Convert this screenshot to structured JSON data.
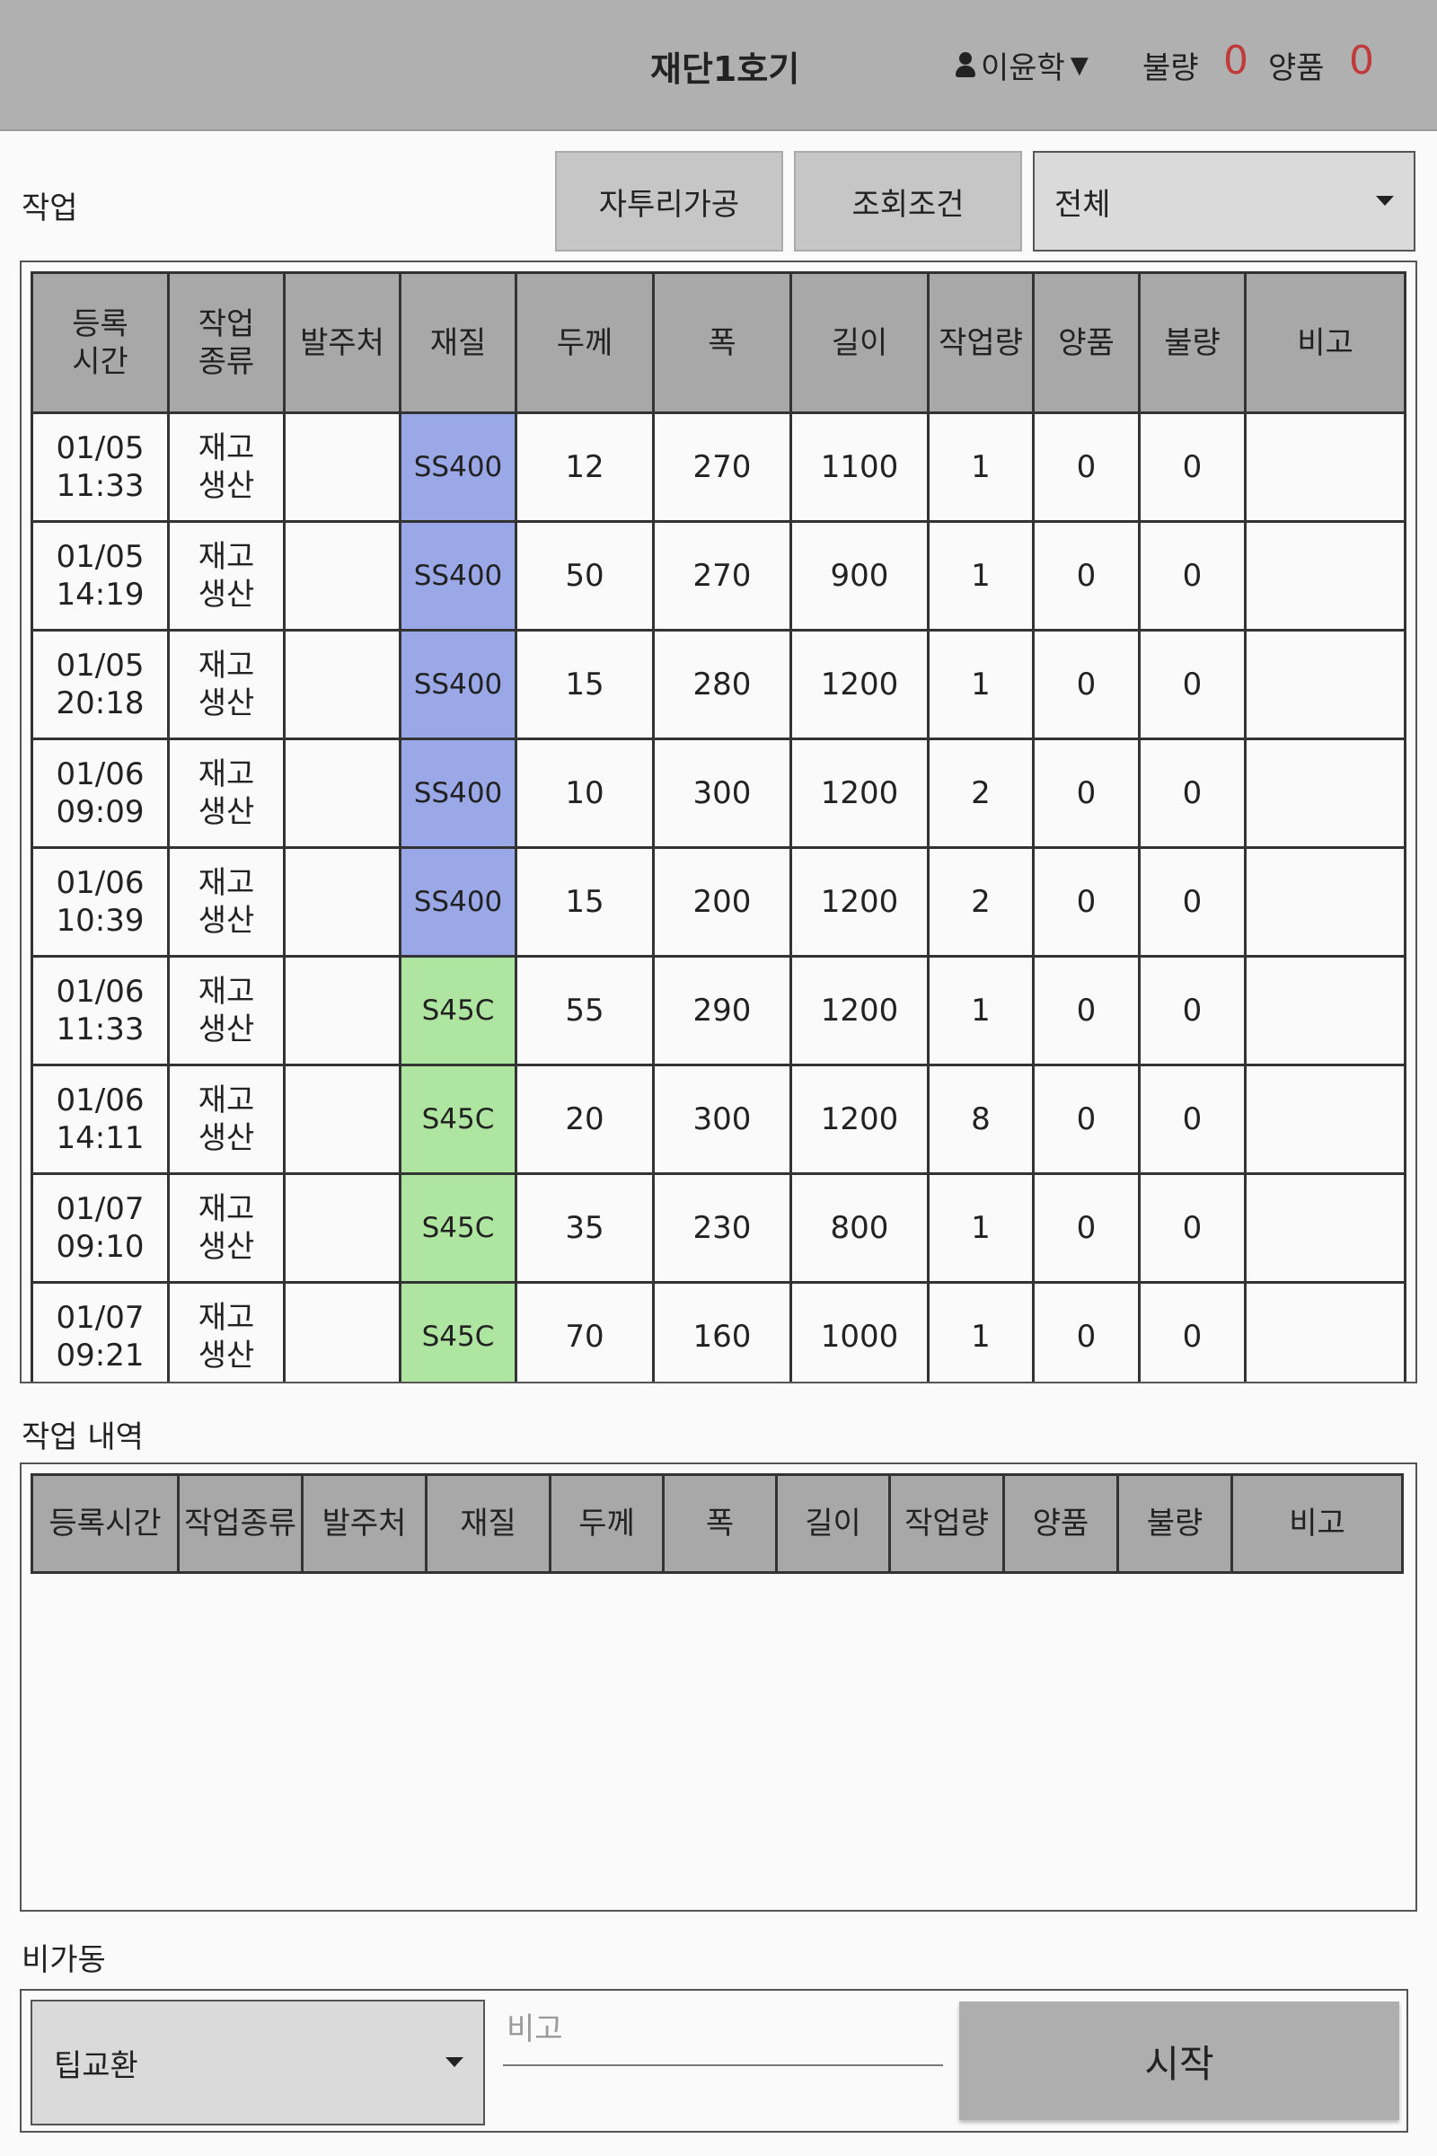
{
  "header": {
    "title": "재단1호기",
    "user": "이윤학",
    "defect_label": "불량",
    "defect_count": "0",
    "good_label": "양품",
    "good_count": "0"
  },
  "work": {
    "label": "작업",
    "button_1": "자투리가공",
    "button_2": "조회조건",
    "filter_value": "전체",
    "columns": [
      "등록\n시간",
      "작업\n종류",
      "발주처",
      "재질",
      "두께",
      "폭",
      "길이",
      "작업량",
      "양품",
      "불량",
      "비고"
    ],
    "rows": [
      {
        "time": "01/05\n11:33",
        "type": "재고\n생산",
        "client": "",
        "material": "SS400",
        "color": "blue",
        "thick": "12",
        "width": "270",
        "length": "1100",
        "qty": "1",
        "good": "0",
        "bad": "0",
        "note": ""
      },
      {
        "time": "01/05\n14:19",
        "type": "재고\n생산",
        "client": "",
        "material": "SS400",
        "color": "blue",
        "thick": "50",
        "width": "270",
        "length": "900",
        "qty": "1",
        "good": "0",
        "bad": "0",
        "note": ""
      },
      {
        "time": "01/05\n20:18",
        "type": "재고\n생산",
        "client": "",
        "material": "SS400",
        "color": "blue",
        "thick": "15",
        "width": "280",
        "length": "1200",
        "qty": "1",
        "good": "0",
        "bad": "0",
        "note": ""
      },
      {
        "time": "01/06\n09:09",
        "type": "재고\n생산",
        "client": "",
        "material": "SS400",
        "color": "blue",
        "thick": "10",
        "width": "300",
        "length": "1200",
        "qty": "2",
        "good": "0",
        "bad": "0",
        "note": ""
      },
      {
        "time": "01/06\n10:39",
        "type": "재고\n생산",
        "client": "",
        "material": "SS400",
        "color": "blue",
        "thick": "15",
        "width": "200",
        "length": "1200",
        "qty": "2",
        "good": "0",
        "bad": "0",
        "note": ""
      },
      {
        "time": "01/06\n11:33",
        "type": "재고\n생산",
        "client": "",
        "material": "S45C",
        "color": "green",
        "thick": "55",
        "width": "290",
        "length": "1200",
        "qty": "1",
        "good": "0",
        "bad": "0",
        "note": ""
      },
      {
        "time": "01/06\n14:11",
        "type": "재고\n생산",
        "client": "",
        "material": "S45C",
        "color": "green",
        "thick": "20",
        "width": "300",
        "length": "1200",
        "qty": "8",
        "good": "0",
        "bad": "0",
        "note": ""
      },
      {
        "time": "01/07\n09:10",
        "type": "재고\n생산",
        "client": "",
        "material": "S45C",
        "color": "green",
        "thick": "35",
        "width": "230",
        "length": "800",
        "qty": "1",
        "good": "0",
        "bad": "0",
        "note": ""
      },
      {
        "time": "01/07\n09:21",
        "type": "재고\n생산",
        "client": "",
        "material": "S45C",
        "color": "green",
        "thick": "70",
        "width": "160",
        "length": "1000",
        "qty": "1",
        "good": "0",
        "bad": "0",
        "note": ""
      }
    ]
  },
  "history": {
    "label": "작업 내역",
    "columns": [
      "등록시간",
      "작업종류",
      "발주처",
      "재질",
      "두께",
      "폭",
      "길이",
      "작업량",
      "양품",
      "불량",
      "비고"
    ]
  },
  "downtime": {
    "label": "비가동",
    "reason_value": "팁교환",
    "note_placeholder": "비고",
    "start_label": "시작"
  },
  "colors": {
    "header_bg": "#b0b0b0",
    "ss400": "#9aa8e8",
    "s45c": "#aee5a0",
    "count_red": "#c03a3a"
  }
}
